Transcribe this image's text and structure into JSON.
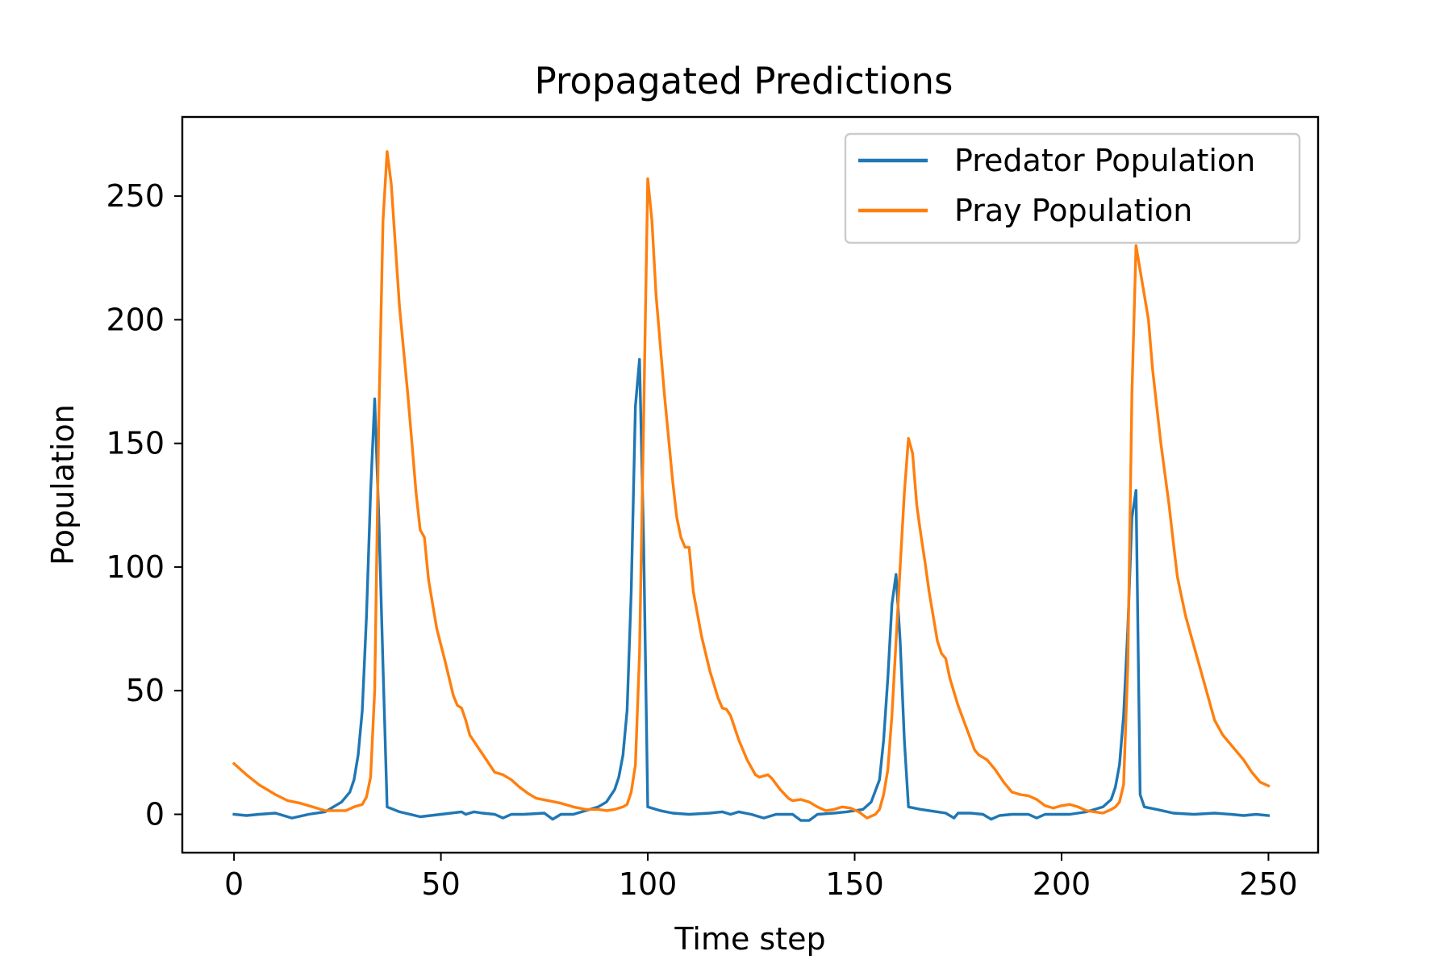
{
  "chart_data": {
    "type": "line",
    "title": "Propagated Predictions",
    "xlabel": "Time step",
    "ylabel": "Population",
    "xlim": [
      -12.5,
      262
    ],
    "ylim": [
      -15.5,
      282
    ],
    "xticks": [
      0,
      50,
      100,
      150,
      200,
      250
    ],
    "yticks": [
      0,
      50,
      100,
      150,
      200,
      250
    ],
    "grid": false,
    "legend_position": "top-right",
    "series": [
      {
        "name": "Predator Population",
        "color": "#1f77b4",
        "points": [
          [
            0,
            0
          ],
          [
            3,
            -0.5
          ],
          [
            6,
            0
          ],
          [
            10,
            0.5
          ],
          [
            14,
            -1.5
          ],
          [
            18,
            0
          ],
          [
            22,
            1
          ],
          [
            24,
            3
          ],
          [
            26,
            5
          ],
          [
            28,
            9
          ],
          [
            29,
            14
          ],
          [
            30,
            24
          ],
          [
            31,
            42
          ],
          [
            32,
            80
          ],
          [
            33,
            130
          ],
          [
            34,
            168
          ],
          [
            35,
            120
          ],
          [
            36,
            60
          ],
          [
            37,
            3
          ],
          [
            40,
            1
          ],
          [
            45,
            -1
          ],
          [
            50,
            0
          ],
          [
            55,
            1
          ],
          [
            56,
            0
          ],
          [
            58,
            1
          ],
          [
            60,
            0.5
          ],
          [
            63,
            0
          ],
          [
            65,
            -1.5
          ],
          [
            67,
            0
          ],
          [
            70,
            0
          ],
          [
            75,
            0.5
          ],
          [
            77,
            -2
          ],
          [
            79,
            0
          ],
          [
            82,
            0
          ],
          [
            86,
            2
          ],
          [
            88,
            3
          ],
          [
            90,
            5
          ],
          [
            92,
            10
          ],
          [
            93,
            15
          ],
          [
            94,
            24
          ],
          [
            95,
            42
          ],
          [
            96,
            90
          ],
          [
            97,
            165
          ],
          [
            98,
            184
          ],
          [
            99,
            110
          ],
          [
            100,
            3
          ],
          [
            103,
            1.5
          ],
          [
            106,
            0.5
          ],
          [
            110,
            0
          ],
          [
            115,
            0.5
          ],
          [
            118,
            1
          ],
          [
            120,
            0
          ],
          [
            122,
            1
          ],
          [
            125,
            0
          ],
          [
            128,
            -1.5
          ],
          [
            131,
            0
          ],
          [
            135,
            0
          ],
          [
            137,
            -2.5
          ],
          [
            139,
            -2.5
          ],
          [
            141,
            0
          ],
          [
            145,
            0.5
          ],
          [
            148,
            1
          ],
          [
            150,
            1.5
          ],
          [
            152,
            2
          ],
          [
            154,
            5
          ],
          [
            156,
            14
          ],
          [
            157,
            30
          ],
          [
            158,
            55
          ],
          [
            159,
            85
          ],
          [
            160,
            97
          ],
          [
            161,
            70
          ],
          [
            162,
            30
          ],
          [
            163,
            3
          ],
          [
            166,
            2
          ],
          [
            170,
            1
          ],
          [
            172,
            0.5
          ],
          [
            174,
            -1.5
          ],
          [
            175,
            0.5
          ],
          [
            178,
            0.5
          ],
          [
            181,
            0
          ],
          [
            183,
            -2
          ],
          [
            185,
            -0.5
          ],
          [
            188,
            0
          ],
          [
            192,
            0
          ],
          [
            194,
            -1.5
          ],
          [
            196,
            0
          ],
          [
            198,
            0
          ],
          [
            202,
            0
          ],
          [
            206,
            1
          ],
          [
            208,
            2
          ],
          [
            210,
            3
          ],
          [
            212,
            6
          ],
          [
            213,
            11
          ],
          [
            214,
            20
          ],
          [
            215,
            40
          ],
          [
            216,
            75
          ],
          [
            217,
            120
          ],
          [
            218,
            131
          ],
          [
            219,
            8
          ],
          [
            220,
            3
          ],
          [
            223,
            2
          ],
          [
            227,
            0.5
          ],
          [
            232,
            0
          ],
          [
            237,
            0.5
          ],
          [
            241,
            0
          ],
          [
            244,
            -0.5
          ],
          [
            247,
            0
          ],
          [
            250,
            -0.5
          ]
        ]
      },
      {
        "name": "Pray Population",
        "color": "#ff7f0e",
        "points": [
          [
            0,
            20.5
          ],
          [
            3,
            16
          ],
          [
            6,
            12
          ],
          [
            10,
            8
          ],
          [
            13,
            5.5
          ],
          [
            16,
            4.5
          ],
          [
            19,
            3
          ],
          [
            22,
            1.5
          ],
          [
            25,
            1.5
          ],
          [
            27,
            1.5
          ],
          [
            29,
            3
          ],
          [
            31,
            4
          ],
          [
            32,
            7
          ],
          [
            33,
            15
          ],
          [
            34,
            50
          ],
          [
            35,
            160
          ],
          [
            36,
            240
          ],
          [
            37,
            268
          ],
          [
            38,
            255
          ],
          [
            40,
            205
          ],
          [
            42,
            170
          ],
          [
            43,
            150
          ],
          [
            44,
            130
          ],
          [
            45,
            115
          ],
          [
            46,
            112
          ],
          [
            47,
            95
          ],
          [
            48,
            85
          ],
          [
            49,
            75
          ],
          [
            51,
            62
          ],
          [
            53,
            48
          ],
          [
            54,
            44
          ],
          [
            55,
            43
          ],
          [
            56,
            38
          ],
          [
            57,
            32
          ],
          [
            59,
            27
          ],
          [
            61,
            22
          ],
          [
            63,
            17
          ],
          [
            65,
            16
          ],
          [
            67,
            14
          ],
          [
            69,
            11
          ],
          [
            71,
            8.5
          ],
          [
            73,
            6.5
          ],
          [
            76,
            5.5
          ],
          [
            79,
            4.5
          ],
          [
            82,
            3
          ],
          [
            85,
            2
          ],
          [
            88,
            2
          ],
          [
            90,
            1.5
          ],
          [
            92,
            2
          ],
          [
            94,
            3
          ],
          [
            95,
            4
          ],
          [
            96,
            9
          ],
          [
            97,
            20
          ],
          [
            98,
            65
          ],
          [
            99,
            160
          ],
          [
            100,
            257
          ],
          [
            101,
            240
          ],
          [
            102,
            210
          ],
          [
            104,
            170
          ],
          [
            106,
            135
          ],
          [
            107,
            120
          ],
          [
            108,
            112
          ],
          [
            109,
            108
          ],
          [
            110,
            108
          ],
          [
            111,
            90
          ],
          [
            113,
            72
          ],
          [
            115,
            58
          ],
          [
            117,
            47
          ],
          [
            118,
            43
          ],
          [
            119,
            42.5
          ],
          [
            120,
            40
          ],
          [
            122,
            30
          ],
          [
            124,
            22
          ],
          [
            126,
            16
          ],
          [
            127,
            15
          ],
          [
            129,
            16
          ],
          [
            130,
            14.5
          ],
          [
            132,
            10
          ],
          [
            134,
            6.5
          ],
          [
            135,
            5.5
          ],
          [
            137,
            6
          ],
          [
            139,
            5
          ],
          [
            141,
            3
          ],
          [
            143,
            1.5
          ],
          [
            145,
            2
          ],
          [
            147,
            3
          ],
          [
            149,
            2.5
          ],
          [
            151,
            1
          ],
          [
            153,
            -1.5
          ],
          [
            155,
            0
          ],
          [
            156,
            2
          ],
          [
            157,
            8
          ],
          [
            158,
            18
          ],
          [
            159,
            40
          ],
          [
            161,
            100
          ],
          [
            162,
            130
          ],
          [
            163,
            152
          ],
          [
            164,
            146
          ],
          [
            165,
            125
          ],
          [
            166,
            113
          ],
          [
            167,
            102
          ],
          [
            168,
            90
          ],
          [
            170,
            70
          ],
          [
            171,
            65
          ],
          [
            172,
            63
          ],
          [
            173,
            55
          ],
          [
            175,
            44
          ],
          [
            177,
            35
          ],
          [
            179,
            26
          ],
          [
            180,
            24
          ],
          [
            182,
            22
          ],
          [
            184,
            18
          ],
          [
            186,
            13
          ],
          [
            188,
            9
          ],
          [
            190,
            8
          ],
          [
            192,
            7.5
          ],
          [
            194,
            6
          ],
          [
            196,
            3.5
          ],
          [
            198,
            2.5
          ],
          [
            200,
            3.5
          ],
          [
            202,
            4
          ],
          [
            204,
            3
          ],
          [
            206,
            1.5
          ],
          [
            208,
            1
          ],
          [
            210,
            0.5
          ],
          [
            212,
            2
          ],
          [
            213,
            3
          ],
          [
            214,
            5
          ],
          [
            215,
            12
          ],
          [
            216,
            60
          ],
          [
            217,
            170
          ],
          [
            218,
            230
          ],
          [
            219,
            220
          ],
          [
            220,
            210
          ],
          [
            221,
            200
          ],
          [
            222,
            180
          ],
          [
            224,
            150
          ],
          [
            226,
            125
          ],
          [
            227,
            110
          ],
          [
            228,
            96
          ],
          [
            229,
            88
          ],
          [
            230,
            80
          ],
          [
            232,
            68
          ],
          [
            234,
            56
          ],
          [
            236,
            44
          ],
          [
            237,
            38
          ],
          [
            239,
            32
          ],
          [
            241,
            28
          ],
          [
            244,
            22
          ],
          [
            246,
            17
          ],
          [
            248,
            13
          ],
          [
            250,
            11.5
          ]
        ]
      }
    ]
  }
}
